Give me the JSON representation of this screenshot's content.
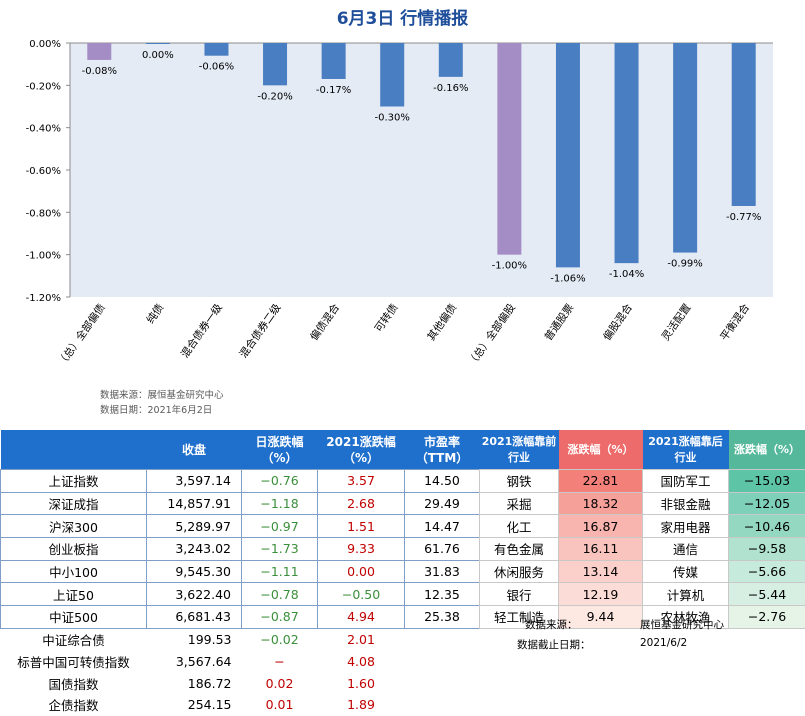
{
  "title": "6月3日  行情播报",
  "source": {
    "line1": "数据来源：展恒基金研究中心",
    "line2": "数据日期：2021年6月2日"
  },
  "chart_data": {
    "type": "bar",
    "categories": [
      "（总）全部偏债",
      "纯债",
      "混合债券一级",
      "混合债券二级",
      "偏债混合",
      "可转债",
      "其他偏债",
      "（总）全部偏股",
      "普通股票",
      "偏股混合",
      "灵活配置",
      "平衡混合"
    ],
    "values": [
      -0.08,
      0.0,
      -0.06,
      -0.2,
      -0.17,
      -0.3,
      -0.16,
      -1.0,
      -1.06,
      -1.04,
      -0.99,
      -0.77
    ],
    "value_labels": [
      "-0.08%",
      "0.00%",
      "-0.06%",
      "-0.20%",
      "-0.17%",
      "-0.30%",
      "-0.16%",
      "-1.00%",
      "-1.06%",
      "-1.04%",
      "-0.99%",
      "-0.77%"
    ],
    "yticks": [
      0.0,
      -0.2,
      -0.4,
      -0.6,
      -0.8,
      -1.0,
      -1.2
    ],
    "ytick_labels": [
      "0.00%",
      "-0.20%",
      "-0.40%",
      "-0.60%",
      "-0.80%",
      "-1.00%",
      "-1.20%"
    ],
    "ylim": [
      -1.2,
      0.0
    ],
    "grid": false,
    "colors": {
      "bar": "#4a7ec2",
      "highlight": "#a48cc4",
      "plot_bg": "#e4ebf5"
    },
    "highlight_indices": [
      0,
      7
    ]
  },
  "index_table": {
    "headers": [
      "",
      "收盘",
      "日涨跌幅\n（%）",
      "2021涨跌幅\n（%）",
      "市盈率\n（TTM）"
    ],
    "rows": [
      {
        "name": "上证指数",
        "close": "3,597.14",
        "day": "−0.76",
        "ytd": "3.57",
        "pe": "14.50"
      },
      {
        "name": "深证成指",
        "close": "14,857.91",
        "day": "−1.18",
        "ytd": "2.68",
        "pe": "29.49"
      },
      {
        "name": "沪深300",
        "close": "5,289.97",
        "day": "−0.97",
        "ytd": "1.51",
        "pe": "14.47"
      },
      {
        "name": "创业板指",
        "close": "3,243.02",
        "day": "−1.73",
        "ytd": "9.33",
        "pe": "61.76"
      },
      {
        "name": "中小100",
        "close": "9,545.30",
        "day": "−1.11",
        "ytd": "0.00",
        "pe": "31.83"
      },
      {
        "name": "上证50",
        "close": "3,622.40",
        "day": "−0.78",
        "ytd": "−0.50",
        "pe": "12.35"
      },
      {
        "name": "中证500",
        "close": "6,681.43",
        "day": "−0.87",
        "ytd": "4.94",
        "pe": "25.38"
      },
      {
        "name": "中证综合债",
        "close": "199.53",
        "day": "−0.02",
        "ytd": "2.01",
        "pe": ""
      },
      {
        "name": "标普中国可转债指数",
        "close": "3,567.64",
        "day": "−",
        "ytd": "4.08",
        "pe": ""
      },
      {
        "name": "国债指数",
        "close": "186.72",
        "day": "0.02",
        "ytd": "1.60",
        "pe": ""
      },
      {
        "name": "企债指数",
        "close": "254.15",
        "day": "0.01",
        "ytd": "1.89",
        "pe": ""
      }
    ],
    "day_sign": [
      "neg",
      "neg",
      "neg",
      "neg",
      "neg",
      "neg",
      "neg",
      "neg",
      "pos",
      "pos",
      "pos"
    ],
    "ytd_sign": [
      "pos",
      "pos",
      "pos",
      "pos",
      "pos",
      "neg",
      "pos",
      "pos",
      "pos",
      "pos",
      "pos"
    ]
  },
  "sector_table": {
    "headers": [
      "2021涨幅靠前\n行业",
      "涨跌幅（%）",
      "2021涨幅靠后\n行业",
      "涨跌幅（%）"
    ],
    "rows": [
      {
        "top_name": "钢铁",
        "top_val": "22.81",
        "bot_name": "国防军工",
        "bot_val": "−15.03"
      },
      {
        "top_name": "采掘",
        "top_val": "18.32",
        "bot_name": "非银金融",
        "bot_val": "−12.05"
      },
      {
        "top_name": "化工",
        "top_val": "16.87",
        "bot_name": "家用电器",
        "bot_val": "−10.46"
      },
      {
        "top_name": "有色金属",
        "top_val": "16.11",
        "bot_name": "通信",
        "bot_val": "−9.58"
      },
      {
        "top_name": "休闲服务",
        "top_val": "13.14",
        "bot_name": "传媒",
        "bot_val": "−5.66"
      },
      {
        "top_name": "银行",
        "top_val": "12.19",
        "bot_name": "计算机",
        "bot_val": "−5.44"
      },
      {
        "top_name": "轻工制造",
        "top_val": "9.44",
        "bot_name": "农林牧渔",
        "bot_val": "−2.76"
      }
    ],
    "top_colors": [
      "#f4807a",
      "#f6a09a",
      "#f8b4ae",
      "#fac4be",
      "#fbd0ca",
      "#fcdcd6",
      "#fde8e2"
    ],
    "bot_colors": [
      "#5ec4a6",
      "#7fd0b8",
      "#94d8c2",
      "#b0e2cf",
      "#c6eadb",
      "#d6efe2",
      "#e6f4e8"
    ],
    "footer": {
      "source_label": "数据来源：",
      "source_value": "展恒基金研究中心",
      "date_label": "数据截止日期：",
      "date_value": "2021/6/2"
    }
  }
}
